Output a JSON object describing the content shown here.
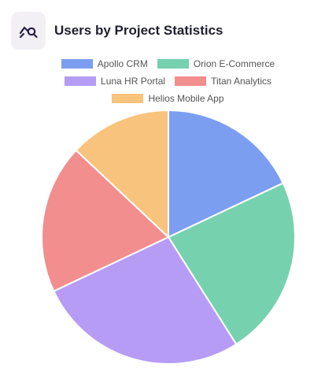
{
  "header": {
    "title": "Users by Project Statistics",
    "icon": "chart-search-icon"
  },
  "chart_data": {
    "type": "pie",
    "title": "",
    "legend_position": "top",
    "slices": [
      {
        "label": "Apollo CRM",
        "value": 18,
        "color": "#7c9ef0"
      },
      {
        "label": "Orion E-Commerce",
        "value": 23,
        "color": "#76d1ae"
      },
      {
        "label": "Luna HR Portal",
        "value": 27,
        "color": "#b69cf5"
      },
      {
        "label": "Titan Analytics",
        "value": 19,
        "color": "#f28e8e"
      },
      {
        "label": "Helios Mobile App",
        "value": 13,
        "color": "#f8c37d"
      }
    ]
  }
}
